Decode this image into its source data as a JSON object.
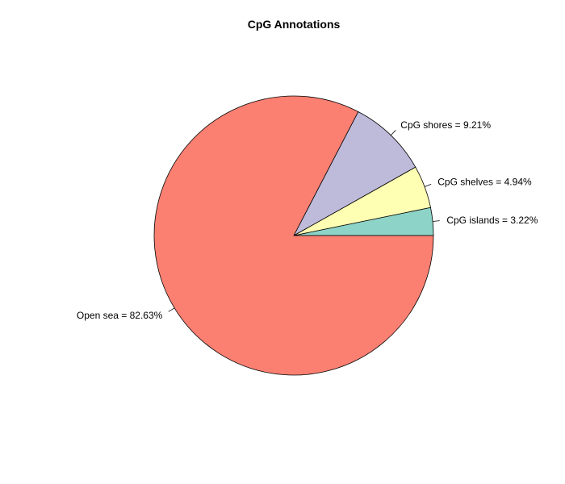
{
  "chart_data": {
    "type": "pie",
    "title": "CpG Annotations",
    "direction": "counterclockwise",
    "start_angle_deg": 0,
    "slices": [
      {
        "label": "CpG islands = 3.22%",
        "value": 3.22,
        "color": "#8DD3C7"
      },
      {
        "label": "CpG shelves = 4.94%",
        "value": 4.94,
        "color": "#FFFFB3"
      },
      {
        "label": "CpG shores = 9.21%",
        "value": 9.21,
        "color": "#BEBADA"
      },
      {
        "label": "Open sea = 82.63%",
        "value": 82.63,
        "color": "#FB8072"
      }
    ],
    "outline_color": "#000000"
  }
}
